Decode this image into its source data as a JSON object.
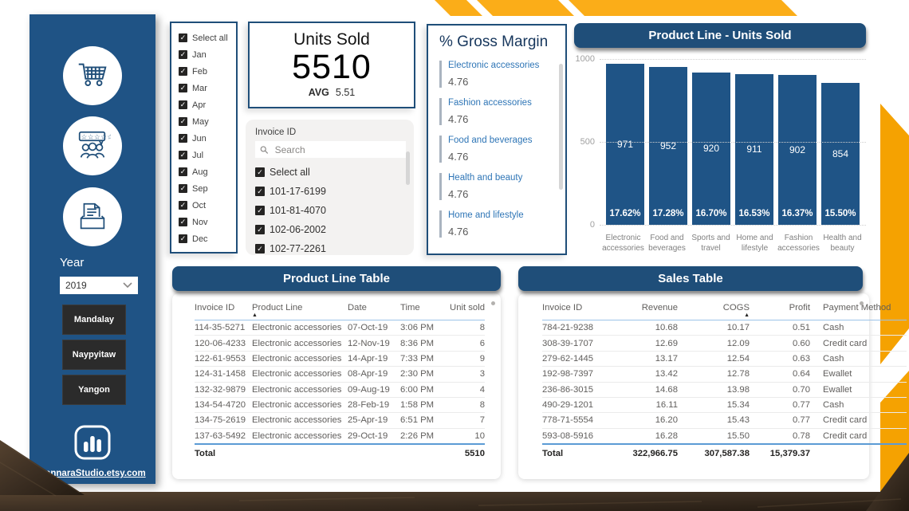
{
  "colors": {
    "sidebar_blue": "#1F5385",
    "header_blue": "#1F4E79",
    "bar_blue": "#1F5486",
    "category_link_blue": "#2E75B6",
    "accent_yellow": "#FBAD18",
    "accent_orange": "#F5A201",
    "wood_brown": "#3B2E22"
  },
  "sidebar": {
    "icons": [
      "cart-icon",
      "customer-rating-icon",
      "documents-icon"
    ],
    "year_label": "Year",
    "year_value": "2019",
    "cities": [
      "Mandalay",
      "Naypyitaw",
      "Yangon"
    ],
    "brand": "PannaraStudio.etsy.com"
  },
  "month_filter": {
    "items": [
      "Select all",
      "Jan",
      "Feb",
      "Mar",
      "Apr",
      "May",
      "Jun",
      "Jul",
      "Aug",
      "Sep",
      "Oct",
      "Nov",
      "Dec"
    ],
    "all_checked": true
  },
  "units_card": {
    "title": "Units Sold",
    "value": "5510",
    "avg_label": "AVG",
    "avg_value": "5.51"
  },
  "invoice_filter": {
    "title": "Invoice ID",
    "search_placeholder": "Search",
    "items": [
      "Select all",
      "101-17-6199",
      "101-81-4070",
      "102-06-2002",
      "102-77-2261"
    ],
    "all_checked": true
  },
  "gross_margin": {
    "title": "% Gross Margin",
    "items": [
      {
        "name": "Electronic accessories",
        "value": "4.76"
      },
      {
        "name": "Fashion accessories",
        "value": "4.76"
      },
      {
        "name": "Food and beverages",
        "value": "4.76"
      },
      {
        "name": "Health and beauty",
        "value": "4.76"
      },
      {
        "name": "Home and lifestyle",
        "value": "4.76"
      }
    ]
  },
  "chart_data": {
    "type": "bar",
    "title": "Product Line - Units Sold",
    "categories": [
      "Electronic accessories",
      "Food and beverages",
      "Sports and travel",
      "Home and lifestyle",
      "Fashion accessories",
      "Health and beauty"
    ],
    "values": [
      971,
      952,
      920,
      911,
      902,
      854
    ],
    "percent_labels": [
      "17.62%",
      "17.28%",
      "16.70%",
      "16.53%",
      "16.37%",
      "15.50%"
    ],
    "xlabel": "",
    "ylabel": "",
    "ylim": [
      0,
      1000
    ],
    "y_ticks": [
      0,
      500,
      1000
    ],
    "grid": "horizontal-dotted",
    "legend": "none"
  },
  "product_table": {
    "title": "Product Line Table",
    "columns": [
      "Invoice ID",
      "Product Line",
      "Date",
      "Time",
      "Unit sold"
    ],
    "sorted_column": "Product Line",
    "rows": [
      [
        "114-35-5271",
        "Electronic accessories",
        "07-Oct-19",
        "3:06 PM",
        "8"
      ],
      [
        "120-06-4233",
        "Electronic accessories",
        "12-Nov-19",
        "8:36 PM",
        "6"
      ],
      [
        "122-61-9553",
        "Electronic accessories",
        "14-Apr-19",
        "7:33 PM",
        "9"
      ],
      [
        "124-31-1458",
        "Electronic accessories",
        "08-Apr-19",
        "2:30 PM",
        "3"
      ],
      [
        "132-32-9879",
        "Electronic accessories",
        "09-Aug-19",
        "6:00 PM",
        "4"
      ],
      [
        "134-54-4720",
        "Electronic accessories",
        "28-Feb-19",
        "1:58 PM",
        "8"
      ],
      [
        "134-75-2619",
        "Electronic accessories",
        "25-Apr-19",
        "6:51 PM",
        "7"
      ],
      [
        "137-63-5492",
        "Electronic accessories",
        "29-Oct-19",
        "2:26 PM",
        "10"
      ]
    ],
    "total": {
      "label": "Total",
      "unit_sold": "5510"
    }
  },
  "sales_table": {
    "title": "Sales Table",
    "columns": [
      "Invoice ID",
      "Revenue",
      "COGS",
      "Profit",
      "Payment Method"
    ],
    "sorted_column": "COGS",
    "rows": [
      [
        "784-21-9238",
        "10.68",
        "10.17",
        "0.51",
        "Cash"
      ],
      [
        "308-39-1707",
        "12.69",
        "12.09",
        "0.60",
        "Credit card"
      ],
      [
        "279-62-1445",
        "13.17",
        "12.54",
        "0.63",
        "Cash"
      ],
      [
        "192-98-7397",
        "13.42",
        "12.78",
        "0.64",
        "Ewallet"
      ],
      [
        "236-86-3015",
        "14.68",
        "13.98",
        "0.70",
        "Ewallet"
      ],
      [
        "490-29-1201",
        "16.11",
        "15.34",
        "0.77",
        "Cash"
      ],
      [
        "778-71-5554",
        "16.20",
        "15.43",
        "0.77",
        "Credit card"
      ],
      [
        "593-08-5916",
        "16.28",
        "15.50",
        "0.78",
        "Credit card"
      ]
    ],
    "total": {
      "label": "Total",
      "revenue": "322,966.75",
      "cogs": "307,587.38",
      "profit": "15,379.37"
    }
  }
}
